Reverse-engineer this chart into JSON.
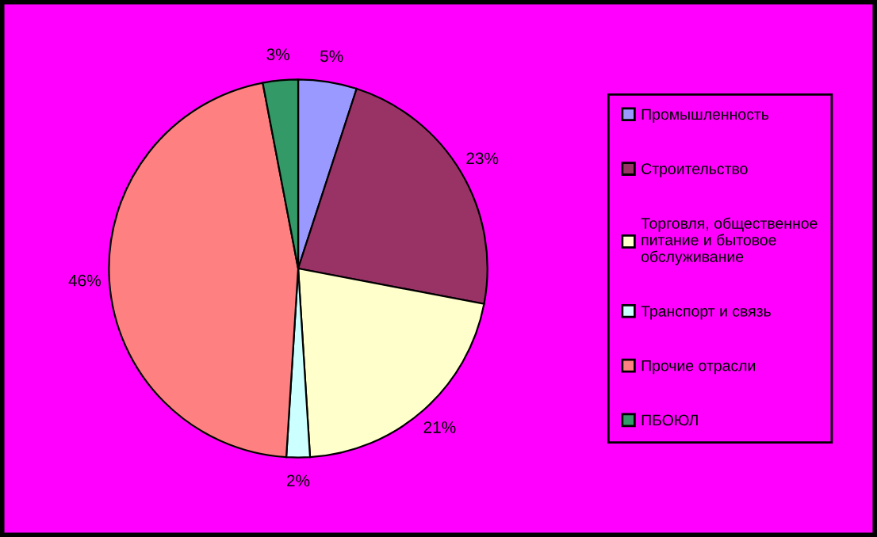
{
  "chart_data": {
    "type": "pie",
    "categories": [
      "Промышленность",
      "Строительство",
      "Торговля, общественное\nпитание и бытовое\nобслуживание",
      "Транспорт и связь",
      "Прочие отрасли",
      "ПБОЮЛ"
    ],
    "values": [
      5,
      23,
      21,
      2,
      46,
      3
    ],
    "colors": [
      "#9999ff",
      "#993366",
      "#ffffcc",
      "#ccffff",
      "#ff8080",
      "#339966"
    ],
    "value_labels": [
      "5%",
      "23%",
      "21%",
      "2%",
      "46%",
      "3%"
    ],
    "legend": "right"
  }
}
